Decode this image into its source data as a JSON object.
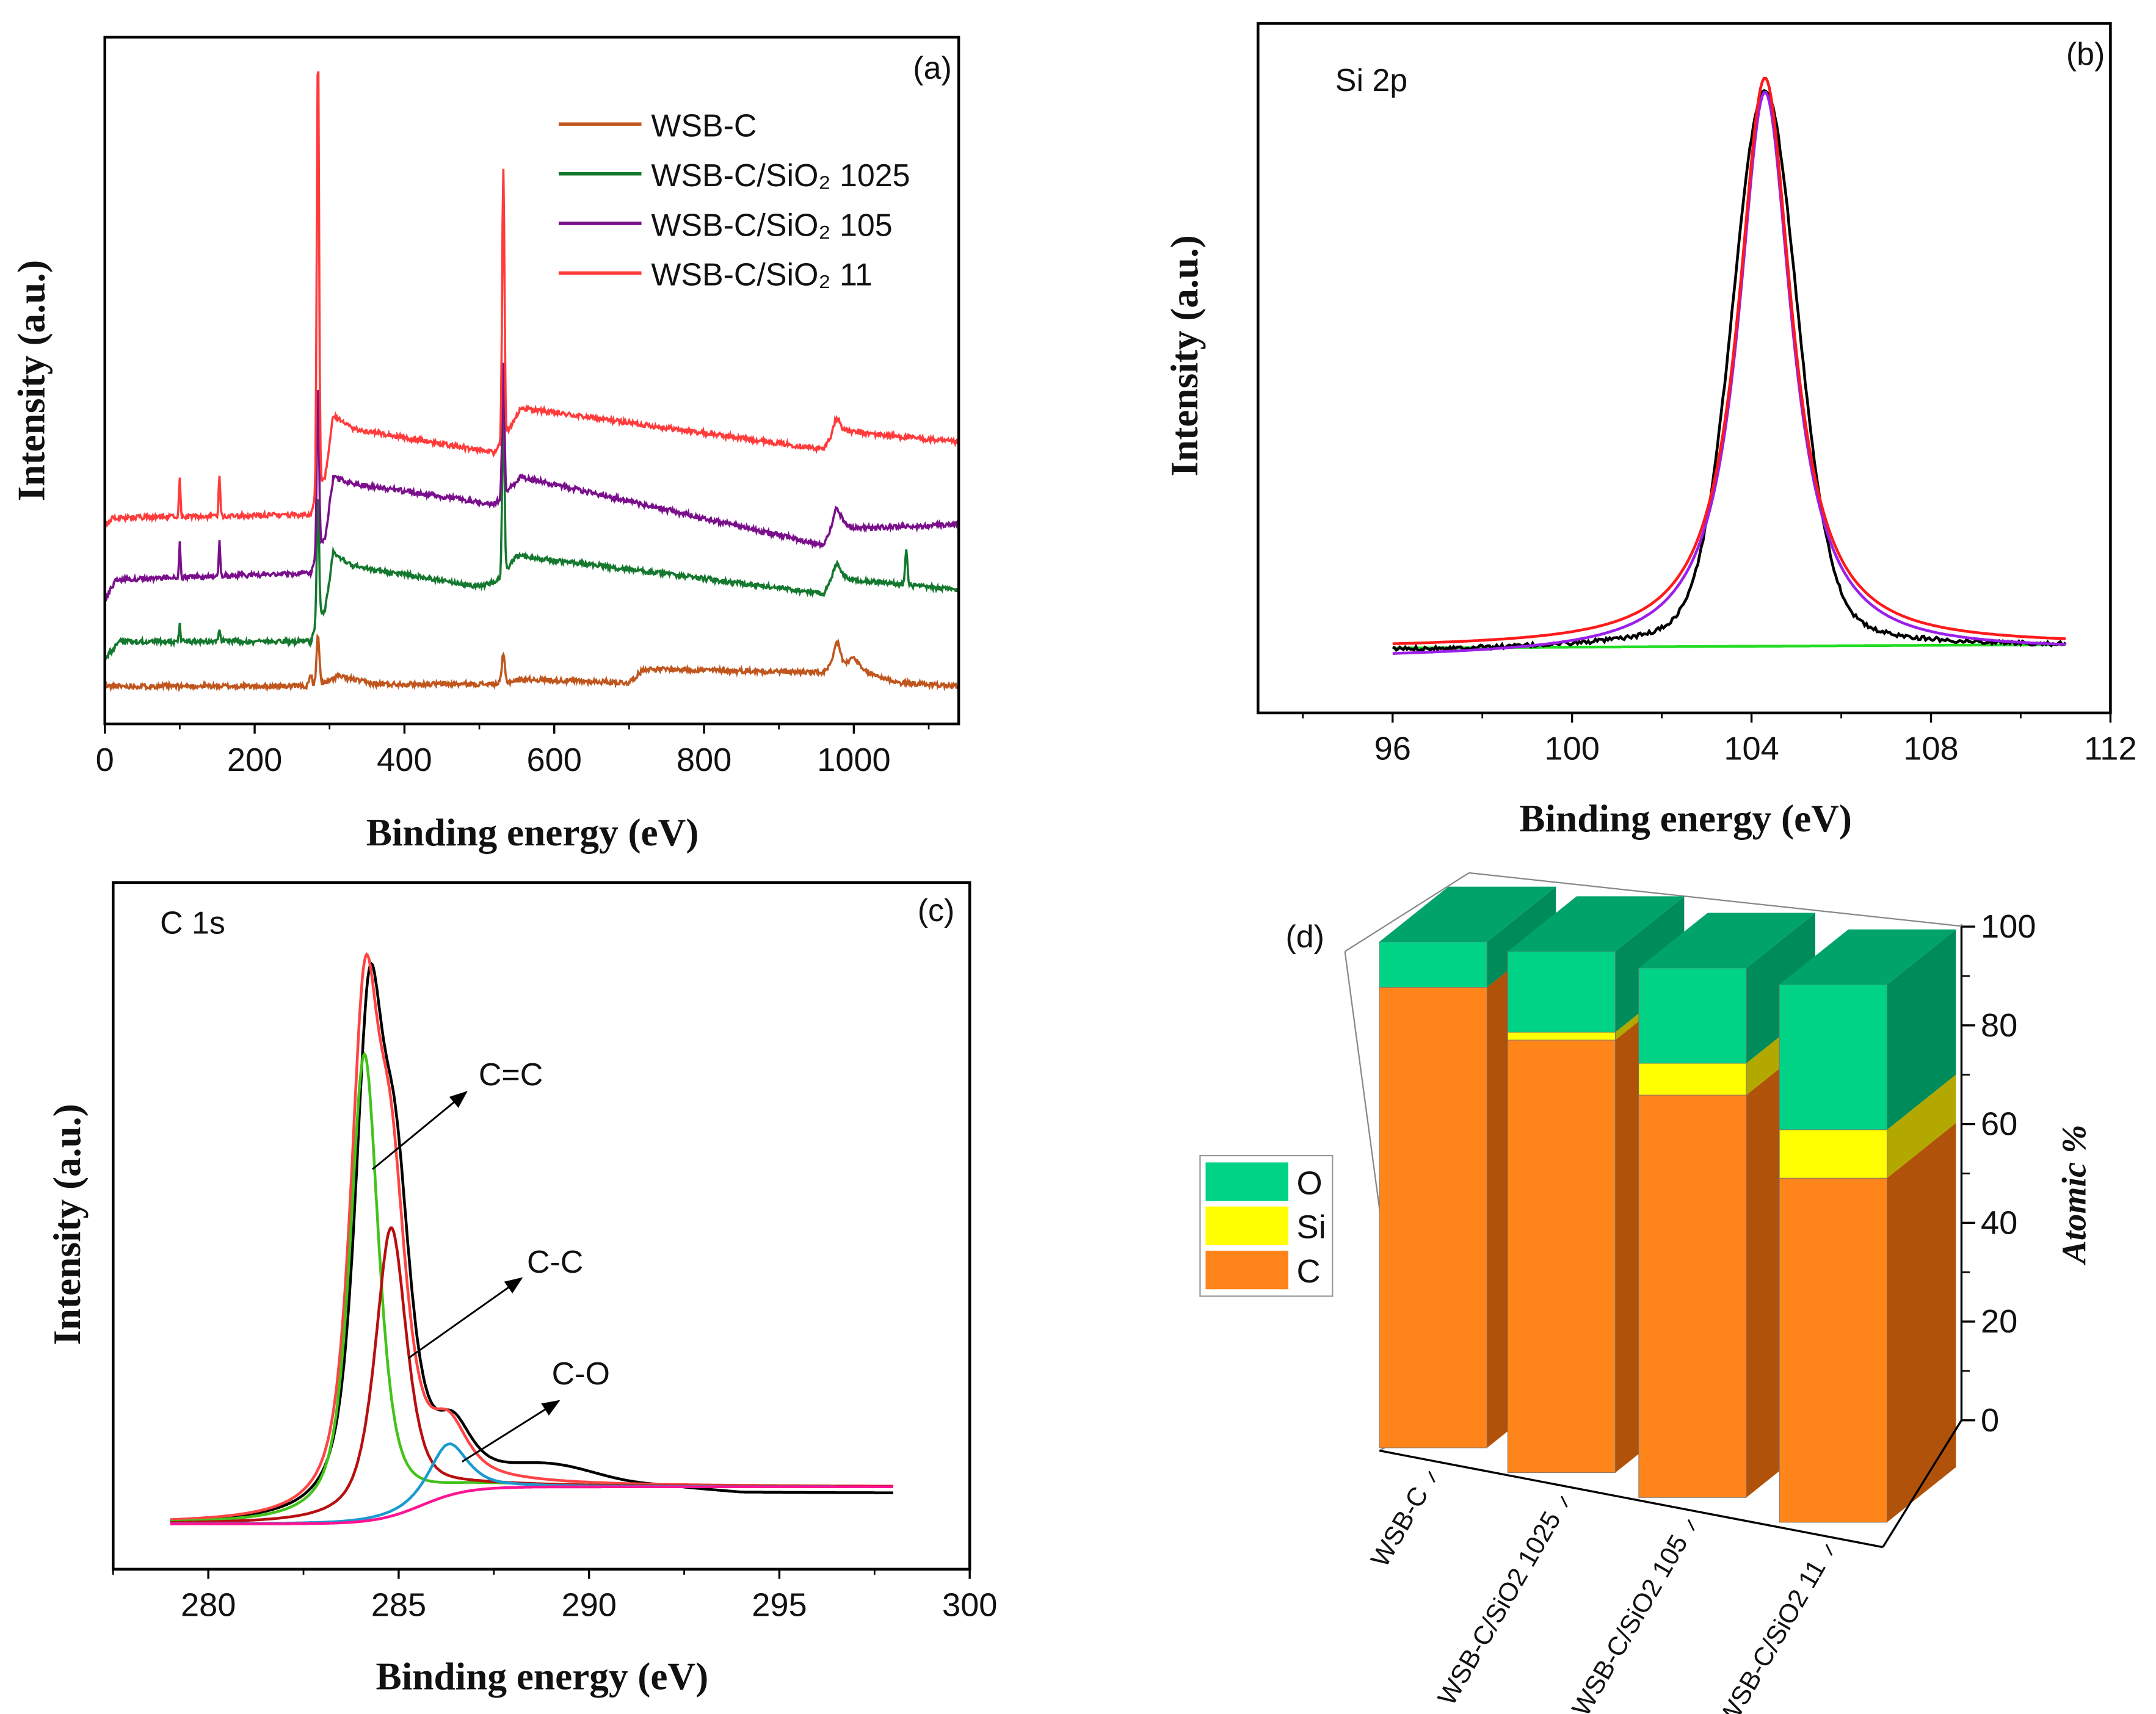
{
  "panels": {
    "a": {
      "label": "(a)"
    },
    "b": {
      "label": "(b)",
      "title": "Si 2p"
    },
    "c": {
      "label": "(c)",
      "title": "C 1s"
    },
    "d": {
      "label": "(d)"
    }
  },
  "chart_data": [
    {
      "type": "line",
      "panel": "(a)",
      "xlabel": "Binding energy (eV)",
      "ylabel": "Intensity (a.u.)",
      "xlim": [
        0,
        1140
      ],
      "ylim": [
        0,
        100
      ],
      "xticks": [
        "0",
        "200",
        "400",
        "600",
        "800",
        "1000"
      ],
      "legend_position": "top-right",
      "series": [
        {
          "name": "WSB-C",
          "color": "#c0561e",
          "base": [
            [
              0,
              5.5
            ],
            [
              280,
              5.5
            ],
            [
              300,
              6.2
            ],
            [
              310,
              7
            ],
            [
              360,
              5.8
            ],
            [
              520,
              5.8
            ],
            [
              560,
              6.5
            ],
            [
              700,
              6
            ],
            [
              720,
              8
            ],
            [
              960,
              7.5
            ],
            [
              975,
              9
            ],
            [
              1060,
              6
            ],
            [
              1140,
              5.5
            ]
          ],
          "peaks": [
            [
              284.5,
              7,
              2
            ],
            [
              532,
              4,
              2
            ],
            [
              978,
              3,
              4
            ],
            [
              1000,
              1.5,
              6
            ],
            [
              275,
              1.5,
              2
            ]
          ]
        },
        {
          "name": "WSB-C/SiO₂ 1025",
          "color": "#14782e",
          "base": [
            [
              0,
              9.5
            ],
            [
              20,
              12
            ],
            [
              275,
              12
            ],
            [
              286,
              16
            ],
            [
              294,
              16.5
            ],
            [
              305,
              25
            ],
            [
              330,
              23
            ],
            [
              500,
              20
            ],
            [
              525,
              21
            ],
            [
              550,
              24.5
            ],
            [
              960,
              19
            ],
            [
              975,
              22
            ],
            [
              1000,
              21
            ],
            [
              1140,
              19.5
            ]
          ],
          "peaks": [
            [
              284.5,
              18,
              1.5
            ],
            [
              532,
              24,
              1.5
            ],
            [
              100,
              2.5,
              1
            ],
            [
              153,
              2,
              1
            ],
            [
              1070,
              5,
              1.5
            ],
            [
              978,
              1.5,
              4
            ]
          ]
        },
        {
          "name": "WSB-C/SiO₂ 105",
          "color": "#7a0f8c",
          "base": [
            [
              0,
              18
            ],
            [
              15,
              21
            ],
            [
              275,
              22
            ],
            [
              286,
              26
            ],
            [
              294,
              27
            ],
            [
              305,
              36
            ],
            [
              330,
              35
            ],
            [
              520,
              32
            ],
            [
              530,
              33
            ],
            [
              555,
              36
            ],
            [
              960,
              26
            ],
            [
              975,
              30
            ],
            [
              1000,
              28.5
            ],
            [
              1140,
              29
            ]
          ],
          "peaks": [
            [
              284.5,
              24,
              1.5
            ],
            [
              532,
              19,
              1.5
            ],
            [
              100,
              5,
              1
            ],
            [
              153,
              5,
              1
            ],
            [
              978,
              1.5,
              4
            ]
          ]
        },
        {
          "name": "WSB-C/SiO₂ 11",
          "color": "#ff3b3b",
          "base": [
            [
              0,
              29
            ],
            [
              10,
              30
            ],
            [
              275,
              30.5
            ],
            [
              286,
              35
            ],
            [
              294,
              36
            ],
            [
              305,
              45
            ],
            [
              330,
              43
            ],
            [
              520,
              39.5
            ],
            [
              545,
              44
            ],
            [
              555,
              46
            ],
            [
              960,
              40
            ],
            [
              975,
              43
            ],
            [
              1000,
              42.5
            ],
            [
              1140,
              41
            ]
          ],
          "peaks": [
            [
              284.5,
              64,
              1.5
            ],
            [
              532,
              39,
              1.5
            ],
            [
              100,
              6,
              1
            ],
            [
              153,
              6,
              1
            ],
            [
              978,
              1.5,
              4
            ]
          ]
        }
      ]
    },
    {
      "type": "line",
      "panel": "(b)",
      "title": "Si 2p",
      "xlabel": "Binding energy (eV)",
      "ylabel": "Intensity (a.u.)",
      "xlim": [
        93,
        112
      ],
      "ylim": [
        0,
        100
      ],
      "xticks": [
        "96",
        "100",
        "104",
        "108",
        "112"
      ],
      "xrange": [
        96,
        111
      ],
      "series": [
        {
          "color": "#000000",
          "baseline": [
            9.0,
            9.6
          ],
          "center": 104.3,
          "height": 78,
          "fwhm": 1.7,
          "lorentz_mix": 0.15,
          "noise": 0.6
        },
        {
          "color": "#ff1a1a",
          "baseline": [
            9.4,
            9.8
          ],
          "center": 104.3,
          "height": 82.5,
          "fwhm": 1.45,
          "lorentz_mix": 1,
          "noise": 0
        },
        {
          "color": "#9b1fe8",
          "baseline": [
            8.0,
            9.0
          ],
          "center": 104.3,
          "height": 81.5,
          "fwhm": 1.45,
          "lorentz_mix": 1,
          "noise": 0
        },
        {
          "color": "#22dd22",
          "baseline": [
            9.4,
            9.9
          ],
          "center": 104.3,
          "height": 0,
          "fwhm": 1,
          "lorentz_mix": 1,
          "noise": 0
        }
      ]
    },
    {
      "type": "line",
      "panel": "(c)",
      "title": "C 1s",
      "xlabel": "Binding energy (eV)",
      "ylabel": "Intensity (a.u.)",
      "xlim": [
        277.5,
        300
      ],
      "ylim": [
        0,
        100
      ],
      "xticks": [
        "280",
        "285",
        "290",
        "295",
        "300"
      ],
      "xrange": [
        279,
        298
      ],
      "background": {
        "color": "#ff1493",
        "low": 6.6,
        "high": 12,
        "step_center": 285.6,
        "step_width": 0.6
      },
      "components": [
        {
          "label": "C=C",
          "color": "#44c21a",
          "center": 284.1,
          "height": 68,
          "fwhm": 0.9
        },
        {
          "label": "C-C",
          "color": "#b80f0f",
          "center": 284.8,
          "height": 42,
          "fwhm": 1.0
        },
        {
          "label": "C-O",
          "color": "#1a9ad0",
          "center": 286.3,
          "height": 7.5,
          "fwhm": 1.2
        }
      ],
      "envelope_color": "#ff4444",
      "raw_color": "#000000"
    },
    {
      "type": "bar",
      "panel": "(d)",
      "stacked": true,
      "ylabel": "Atomic %",
      "ylim": [
        0,
        100
      ],
      "yticks": [
        "0",
        "20",
        "40",
        "60",
        "80",
        "100"
      ],
      "categories": [
        "WSB-C",
        "WSB-C/SiO2 1025",
        "WSB-C/SiO2 105",
        "WSB-C/SiO2 11"
      ],
      "series": [
        {
          "name": "C",
          "values": [
            91,
            83,
            76,
            64
          ],
          "color": "#ff851b",
          "side": "#b0520a"
        },
        {
          "name": "Si",
          "values": [
            0,
            1.5,
            6,
            9
          ],
          "color": "#ffff00",
          "side": "#b3a800"
        },
        {
          "name": "O",
          "values": [
            9,
            15.5,
            18,
            27
          ],
          "color": "#00d286",
          "side": "#008c5a",
          "top": "#00a46a"
        }
      ],
      "legend_order": [
        "O",
        "Si",
        "C"
      ],
      "legend_position": "left"
    }
  ]
}
